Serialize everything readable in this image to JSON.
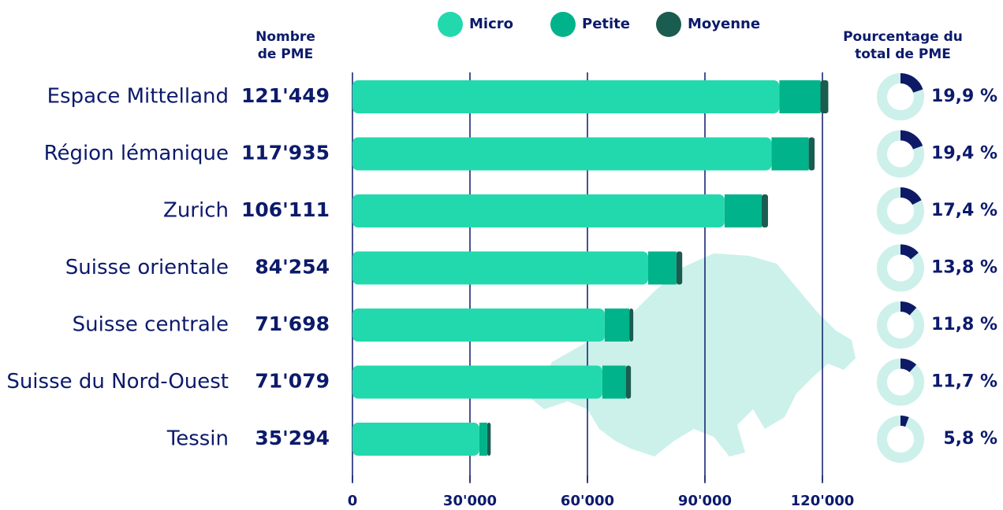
{
  "chart_data": {
    "type": "bar",
    "orientation": "horizontal",
    "stacked": true,
    "categories": [
      "Espace Mittelland",
      "Région lémanique",
      "Zurich",
      "Suisse orientale",
      "Suisse centrale",
      "Suisse du Nord-Ouest",
      "Tessin"
    ],
    "series": [
      {
        "name": "Micro",
        "color": "#22d9ad",
        "values": [
          109000,
          107000,
          95000,
          75500,
          64400,
          63800,
          32400
        ]
      },
      {
        "name": "Petite",
        "color": "#00b38a",
        "values": [
          10500,
          9500,
          9500,
          7200,
          6300,
          6000,
          2000
        ]
      },
      {
        "name": "Moyenne",
        "color": "#1a5c50",
        "values": [
          2000,
          1500,
          1600,
          1500,
          1000,
          1300,
          900
        ]
      }
    ],
    "totals_header": [
      "Nombre",
      "de PME"
    ],
    "totals": {
      "values": [
        121449,
        117935,
        106111,
        84254,
        71698,
        71079,
        35294
      ],
      "value_labels": [
        "121'449",
        "117'935",
        "106'111",
        "84'254",
        "71'698",
        "71'079",
        "35'294"
      ]
    },
    "percent_header": [
      "Pourcentage du",
      "total de PME"
    ],
    "percent": {
      "color": "#0f1a66",
      "track_color": "#cdf0ea",
      "values": [
        19.9,
        19.4,
        17.4,
        13.8,
        11.8,
        11.7,
        5.8
      ],
      "value_labels": [
        "19,9 %",
        "19,4 %",
        "17,4 %",
        "13,8 %",
        "11,8 %",
        "11,7 %",
        "5,8 %"
      ]
    },
    "xlim": [
      0,
      120000
    ],
    "xticks": [
      0,
      {
        "value": 30000,
        "label": "30'000"
      },
      {
        "value": 60000,
        "label": "60'000"
      },
      {
        "value": 90000,
        "label": "90'000"
      },
      {
        "value": 120000,
        "label": "120'000"
      }
    ],
    "grid": true
  }
}
